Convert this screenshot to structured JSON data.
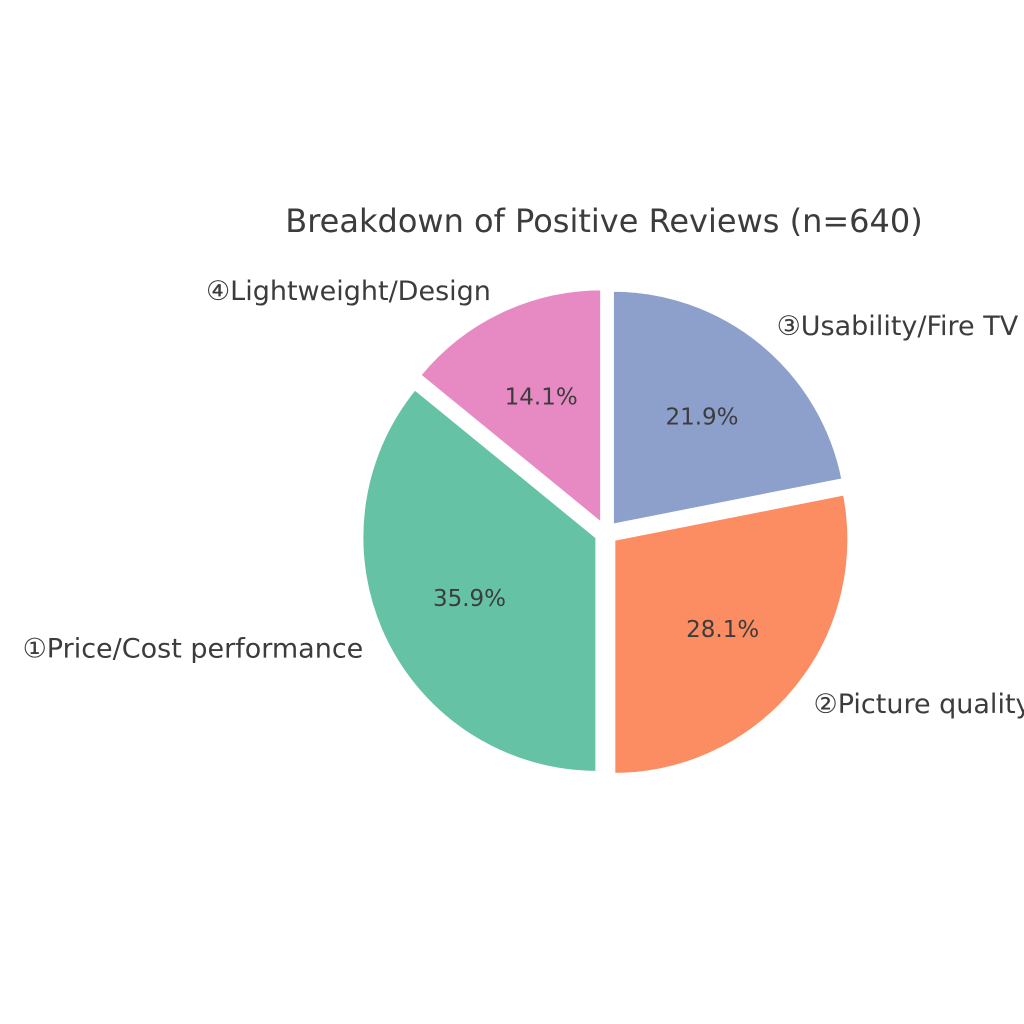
{
  "chart_data": {
    "type": "pie",
    "title": "Breakdown of Positive Reviews (n=640)",
    "start_angle_deg": 90,
    "direction": "clockwise",
    "explode": 0.043,
    "pct_distance": 0.6,
    "label_distance": 1.1,
    "legend": "none",
    "background": "#ffffff",
    "text_color": "#3c3c3c",
    "slices": [
      {
        "label": "③Usability/Fire TV",
        "value": 21.9,
        "pct_label": "21.9%",
        "color": "#8da0cb"
      },
      {
        "label": "②Picture quality",
        "value": 28.1,
        "pct_label": "28.1%",
        "color": "#fc8d62"
      },
      {
        "label": "①Price/Cost performance",
        "value": 35.9,
        "pct_label": "35.9%",
        "color": "#66c2a5"
      },
      {
        "label": "④Lightweight/Design",
        "value": 14.1,
        "pct_label": "14.1%",
        "color": "#e78ac3"
      }
    ]
  }
}
